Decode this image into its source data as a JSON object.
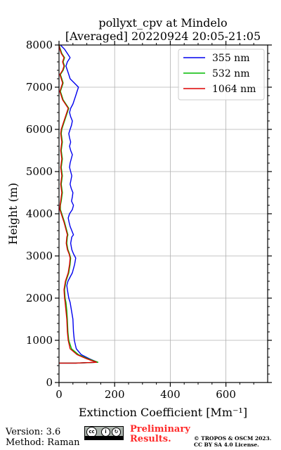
{
  "chart_data": {
    "type": "line",
    "orientation": "vertical-profile",
    "title": "pollyxt_cpv at Mindelo",
    "subtitle": "[Averaged] 20220924 20:05-21:05",
    "xlabel": "Extinction Coefficient [Mm⁻¹]",
    "ylabel": "Height (m)",
    "xlim": [
      0,
      750
    ],
    "ylim": [
      0,
      8000
    ],
    "xticks": [
      0,
      200,
      400,
      600
    ],
    "yticks": [
      0,
      1000,
      2000,
      3000,
      4000,
      5000,
      6000,
      7000,
      8000
    ],
    "grid": true,
    "legend_position": "top-right",
    "series": [
      {
        "name": "355 nm",
        "color": "#0000ee",
        "points": [
          [
            0,
            460
          ],
          [
            60,
            460
          ],
          [
            138,
            480
          ],
          [
            110,
            560
          ],
          [
            80,
            660
          ],
          [
            62,
            800
          ],
          [
            55,
            1000
          ],
          [
            52,
            1200
          ],
          [
            50,
            1500
          ],
          [
            45,
            1700
          ],
          [
            40,
            1900
          ],
          [
            35,
            2000
          ],
          [
            30,
            2200
          ],
          [
            28,
            2300
          ],
          [
            32,
            2400
          ],
          [
            40,
            2500
          ],
          [
            48,
            2600
          ],
          [
            52,
            2700
          ],
          [
            56,
            2800
          ],
          [
            60,
            2950
          ],
          [
            52,
            3050
          ],
          [
            46,
            3150
          ],
          [
            42,
            3300
          ],
          [
            46,
            3450
          ],
          [
            52,
            3500
          ],
          [
            46,
            3600
          ],
          [
            40,
            3700
          ],
          [
            36,
            3800
          ],
          [
            33,
            3900
          ],
          [
            38,
            4000
          ],
          [
            48,
            4100
          ],
          [
            52,
            4200
          ],
          [
            45,
            4300
          ],
          [
            48,
            4400
          ],
          [
            50,
            4500
          ],
          [
            44,
            4600
          ],
          [
            40,
            4700
          ],
          [
            43,
            4800
          ],
          [
            46,
            4900
          ],
          [
            42,
            5000
          ],
          [
            38,
            5100
          ],
          [
            40,
            5200
          ],
          [
            44,
            5300
          ],
          [
            48,
            5400
          ],
          [
            42,
            5500
          ],
          [
            38,
            5600
          ],
          [
            42,
            5700
          ],
          [
            38,
            5800
          ],
          [
            35,
            5900
          ],
          [
            40,
            6000
          ],
          [
            45,
            6100
          ],
          [
            48,
            6200
          ],
          [
            42,
            6300
          ],
          [
            38,
            6400
          ],
          [
            42,
            6500
          ],
          [
            50,
            6600
          ],
          [
            55,
            6700
          ],
          [
            60,
            6800
          ],
          [
            65,
            6900
          ],
          [
            70,
            7000
          ],
          [
            55,
            7100
          ],
          [
            40,
            7200
          ],
          [
            35,
            7300
          ],
          [
            30,
            7400
          ],
          [
            25,
            7500
          ],
          [
            30,
            7600
          ],
          [
            40,
            7700
          ],
          [
            30,
            7800
          ],
          [
            20,
            7900
          ],
          [
            5,
            8000
          ]
        ]
      },
      {
        "name": "532 nm",
        "color": "#00bb00",
        "points": [
          [
            0,
            460
          ],
          [
            60,
            460
          ],
          [
            140,
            480
          ],
          [
            105,
            560
          ],
          [
            70,
            660
          ],
          [
            45,
            800
          ],
          [
            35,
            1000
          ],
          [
            32,
            1200
          ],
          [
            30,
            1500
          ],
          [
            28,
            1700
          ],
          [
            25,
            1900
          ],
          [
            22,
            2000
          ],
          [
            20,
            2200
          ],
          [
            25,
            2400
          ],
          [
            35,
            2600
          ],
          [
            40,
            2800
          ],
          [
            42,
            2950
          ],
          [
            38,
            3050
          ],
          [
            32,
            3150
          ],
          [
            28,
            3300
          ],
          [
            30,
            3450
          ],
          [
            32,
            3500
          ],
          [
            28,
            3600
          ],
          [
            24,
            3700
          ],
          [
            20,
            3800
          ],
          [
            15,
            3900
          ],
          [
            10,
            4000
          ],
          [
            5,
            4100
          ],
          [
            5,
            4200
          ],
          [
            8,
            4300
          ],
          [
            10,
            4400
          ],
          [
            12,
            4500
          ],
          [
            10,
            4600
          ],
          [
            8,
            4700
          ],
          [
            10,
            4800
          ],
          [
            12,
            4900
          ],
          [
            10,
            5000
          ],
          [
            8,
            5100
          ],
          [
            10,
            5200
          ],
          [
            12,
            5300
          ],
          [
            10,
            5400
          ],
          [
            8,
            5500
          ],
          [
            10,
            5600
          ],
          [
            12,
            5700
          ],
          [
            10,
            5800
          ],
          [
            8,
            5900
          ],
          [
            10,
            6000
          ],
          [
            15,
            6100
          ],
          [
            20,
            6200
          ],
          [
            25,
            6300
          ],
          [
            30,
            6400
          ],
          [
            35,
            6500
          ],
          [
            25,
            6600
          ],
          [
            15,
            6700
          ],
          [
            10,
            6800
          ],
          [
            5,
            6900
          ],
          [
            10,
            7000
          ],
          [
            15,
            7100
          ],
          [
            10,
            7200
          ],
          [
            5,
            7300
          ],
          [
            15,
            7400
          ],
          [
            20,
            7500
          ],
          [
            15,
            7600
          ],
          [
            20,
            7700
          ],
          [
            10,
            7800
          ],
          [
            5,
            7900
          ],
          [
            0,
            8000
          ]
        ]
      },
      {
        "name": "1064 nm",
        "color": "#dd0000",
        "points": [
          [
            0,
            460
          ],
          [
            60,
            460
          ],
          [
            135,
            480
          ],
          [
            100,
            560
          ],
          [
            65,
            660
          ],
          [
            40,
            800
          ],
          [
            33,
            1000
          ],
          [
            30,
            1200
          ],
          [
            28,
            1500
          ],
          [
            25,
            1700
          ],
          [
            22,
            1900
          ],
          [
            20,
            2000
          ],
          [
            18,
            2200
          ],
          [
            23,
            2400
          ],
          [
            33,
            2600
          ],
          [
            38,
            2800
          ],
          [
            40,
            2950
          ],
          [
            36,
            3050
          ],
          [
            30,
            3150
          ],
          [
            26,
            3300
          ],
          [
            28,
            3450
          ],
          [
            30,
            3500
          ],
          [
            26,
            3600
          ],
          [
            22,
            3700
          ],
          [
            18,
            3800
          ],
          [
            13,
            3900
          ],
          [
            8,
            4000
          ],
          [
            3,
            4100
          ],
          [
            4,
            4200
          ],
          [
            6,
            4300
          ],
          [
            8,
            4400
          ],
          [
            10,
            4500
          ],
          [
            8,
            4600
          ],
          [
            6,
            4700
          ],
          [
            8,
            4800
          ],
          [
            10,
            4900
          ],
          [
            8,
            5000
          ],
          [
            6,
            5100
          ],
          [
            8,
            5200
          ],
          [
            10,
            5300
          ],
          [
            8,
            5400
          ],
          [
            6,
            5500
          ],
          [
            8,
            5600
          ],
          [
            10,
            5700
          ],
          [
            8,
            5800
          ],
          [
            6,
            5900
          ],
          [
            8,
            6000
          ],
          [
            13,
            6100
          ],
          [
            18,
            6200
          ],
          [
            23,
            6300
          ],
          [
            28,
            6400
          ],
          [
            33,
            6500
          ],
          [
            23,
            6600
          ],
          [
            13,
            6700
          ],
          [
            8,
            6800
          ],
          [
            3,
            6900
          ],
          [
            8,
            7000
          ],
          [
            13,
            7100
          ],
          [
            8,
            7200
          ],
          [
            3,
            7300
          ],
          [
            13,
            7400
          ],
          [
            18,
            7500
          ],
          [
            13,
            7600
          ],
          [
            18,
            7700
          ],
          [
            8,
            7800
          ],
          [
            3,
            7900
          ],
          [
            0,
            8000
          ]
        ]
      }
    ]
  },
  "footer": {
    "version": "Version: 3.6",
    "method": "Method: Raman",
    "preliminary_line1": "Preliminary",
    "preliminary_line2": "Results.",
    "copyright_line1": "© TROPOS & OSCM 2023.",
    "copyright_line2": "CC BY SA 4.0 License.",
    "license_icon": "cc-by-sa-badge-icon"
  }
}
